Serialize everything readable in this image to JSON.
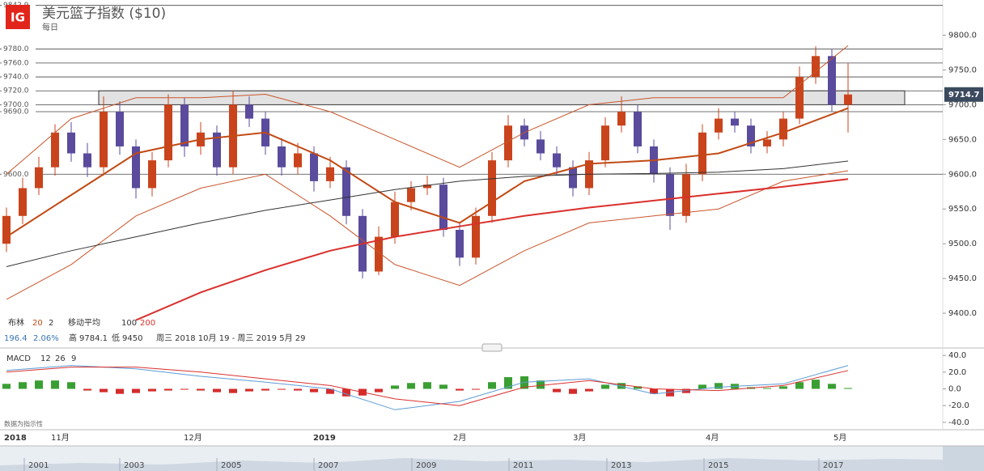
{
  "logo": "IG",
  "title": "美元篮子指数 ($10)",
  "subtitle": "每日",
  "indicators": {
    "bollinger": {
      "name": "布林",
      "period": 20,
      "deviations": 2
    },
    "moving_average": {
      "name": "移动平均",
      "periods": [
        100,
        200
      ]
    },
    "change": 196.4,
    "change_pct": "2.06%",
    "high": {
      "label": "高",
      "value": 9784.1
    },
    "low": {
      "label": "低",
      "value": 9450.0
    },
    "range": "周三 2018 10月 19 - 周三 2019 5月 29",
    "macd": {
      "name": "MACD",
      "params": [
        12,
        26,
        9
      ]
    },
    "disclaimer": "数据为指示性"
  },
  "navigator": {
    "years": [
      2001,
      2003,
      2005,
      2007,
      2009,
      2011,
      2013,
      2015,
      2017
    ]
  },
  "chart_data": [
    {
      "type": "candlestick",
      "ylim": [
        9350,
        9846
      ],
      "yticks": [
        {
          "value": 9400,
          "label": "9400.0"
        },
        {
          "value": 9450,
          "label": "9450.0"
        },
        {
          "value": 9500,
          "label": "9500.0"
        },
        {
          "value": 9550,
          "label": "9550.0"
        },
        {
          "value": 9600,
          "label": "9600.0"
        },
        {
          "value": 9650,
          "label": "9650.0"
        },
        {
          "value": 9700,
          "label": "9700.0"
        },
        {
          "value": 9750,
          "label": "9750.0"
        },
        {
          "value": 9800,
          "label": "9800.0"
        }
      ],
      "levels": [
        {
          "value": 9842.9,
          "label": "9842.9"
        },
        {
          "value": 9780,
          "label": "9780.0"
        },
        {
          "value": 9760,
          "label": "9760.0"
        },
        {
          "value": 9740,
          "label": "9740.0"
        },
        {
          "value": 9720,
          "label": "9720.0"
        },
        {
          "value": 9700,
          "label": "9700.0"
        },
        {
          "value": 9690,
          "label": "9690.0"
        },
        {
          "value": 9600,
          "label": "9600.0"
        }
      ],
      "zone": [
        9700,
        9720
      ],
      "x_labels": [
        "2018",
        "11月",
        "12月",
        "2019",
        "2月",
        "3月",
        "4月",
        "5月"
      ],
      "up_color": "#c9441c",
      "down_color": "#5a4b9c",
      "open": [
        9500,
        9540,
        9580,
        9610,
        9660,
        9630,
        9610,
        9690,
        9640,
        9580,
        9620,
        9700,
        9640,
        9660,
        9610,
        9700,
        9680,
        9640,
        9610,
        9630,
        9590,
        9610,
        9540,
        9460,
        9510,
        9560,
        9580,
        9585,
        9520,
        9480,
        9540,
        9620,
        9670,
        9650,
        9630,
        9610,
        9580,
        9620,
        9670,
        9690,
        9640,
        9600,
        9540,
        9600,
        9660,
        9680,
        9670,
        9640,
        9650,
        9680,
        9740,
        9770,
        9700
      ],
      "high": [
        9552,
        9595,
        9625,
        9672,
        9675,
        9645,
        9712,
        9705,
        9650,
        9632,
        9715,
        9710,
        9675,
        9670,
        9720,
        9712,
        9690,
        9652,
        9645,
        9640,
        9625,
        9620,
        9550,
        9525,
        9575,
        9590,
        9598,
        9595,
        9530,
        9552,
        9632,
        9685,
        9680,
        9662,
        9640,
        9620,
        9632,
        9682,
        9712,
        9700,
        9650,
        9610,
        9615,
        9672,
        9695,
        9690,
        9680,
        9662,
        9690,
        9755,
        9784.1,
        9780,
        9760
      ],
      "low": [
        9488,
        9528,
        9570,
        9598,
        9618,
        9596,
        9598,
        9628,
        9565,
        9568,
        9610,
        9625,
        9628,
        9598,
        9600,
        9668,
        9628,
        9598,
        9600,
        9575,
        9580,
        9528,
        9450,
        9455,
        9500,
        9548,
        9570,
        9510,
        9468,
        9470,
        9530,
        9610,
        9640,
        9620,
        9598,
        9568,
        9570,
        9610,
        9660,
        9630,
        9588,
        9520,
        9530,
        9590,
        9650,
        9660,
        9630,
        9630,
        9640,
        9672,
        9730,
        9690,
        9660
      ],
      "close": [
        9540,
        9580,
        9610,
        9660,
        9630,
        9610,
        9690,
        9640,
        9580,
        9620,
        9700,
        9640,
        9660,
        9610,
        9700,
        9680,
        9640,
        9610,
        9630,
        9590,
        9610,
        9540,
        9460,
        9510,
        9560,
        9580,
        9585,
        9520,
        9480,
        9540,
        9620,
        9670,
        9650,
        9630,
        9610,
        9580,
        9620,
        9670,
        9690,
        9640,
        9600,
        9540,
        9600,
        9660,
        9680,
        9670,
        9640,
        9650,
        9680,
        9740,
        9770,
        9700,
        9714.7
      ],
      "lines": [
        {
          "color": "#c9562c",
          "width": 1,
          "values": [
            9600,
            9680,
            9710,
            9710,
            9715,
            9690,
            9650,
            9610,
            9660,
            9700,
            9710,
            9710,
            9710,
            9785
          ]
        },
        {
          "color": "#c9562c",
          "width": 1,
          "values": [
            9420,
            9470,
            9540,
            9580,
            9600,
            9540,
            9470,
            9440,
            9490,
            9530,
            9540,
            9550,
            9590,
            9605
          ]
        },
        {
          "color": "#c24a15",
          "width": 2,
          "values": [
            9510,
            9570,
            9630,
            9650,
            9660,
            9620,
            9560,
            9530,
            9590,
            9615,
            9620,
            9630,
            9660,
            9695
          ]
        },
        {
          "color": "#333333",
          "width": 1,
          "values": [
            9467,
            9490,
            9510,
            9530,
            9548,
            9563,
            9578,
            9590,
            9597,
            9600,
            9601,
            9603,
            9608,
            9619
          ]
        },
        {
          "color": "#d9302c",
          "width": 2,
          "values": [
            null,
            null,
            9390,
            9430,
            9462,
            9490,
            9510,
            9525,
            9540,
            9552,
            9562,
            9572,
            9582,
            9593
          ]
        }
      ]
    },
    {
      "type": "macd",
      "ylim": [
        -45,
        45
      ],
      "yticks": [
        {
          "value": 40,
          "label": "40.0"
        },
        {
          "value": 20,
          "label": "20.0"
        },
        {
          "value": 0,
          "label": "0.0"
        },
        {
          "value": -20,
          "label": "-20.0"
        },
        {
          "value": -40,
          "label": "-40.0"
        }
      ],
      "up_color": "#3a9f33",
      "down_color": "#d52b2b",
      "histogram": [
        6,
        8,
        10,
        10,
        8,
        -2,
        -4,
        -6,
        -5,
        -3,
        -2,
        -1,
        -2,
        -4,
        -5,
        -3,
        -2,
        -1,
        -2,
        -4,
        -6,
        -9,
        -8,
        -4,
        4,
        7,
        8,
        5,
        -2,
        -1,
        8,
        14,
        15,
        10,
        -4,
        -6,
        -3,
        5,
        7,
        3,
        -6,
        -9,
        -5,
        5,
        7,
        6,
        2,
        1,
        3,
        8,
        11,
        6,
        1
      ],
      "lines": [
        {
          "color": "#5b9bd5",
          "width": 1,
          "values": [
            22,
            28,
            24,
            15,
            8,
            0,
            -25,
            -15,
            8,
            12,
            -6,
            2,
            6,
            28
          ]
        },
        {
          "color": "#d9302c",
          "width": 1,
          "values": [
            20,
            26,
            26,
            20,
            12,
            4,
            -12,
            -20,
            2,
            10,
            0,
            -2,
            4,
            22
          ]
        }
      ]
    }
  ]
}
